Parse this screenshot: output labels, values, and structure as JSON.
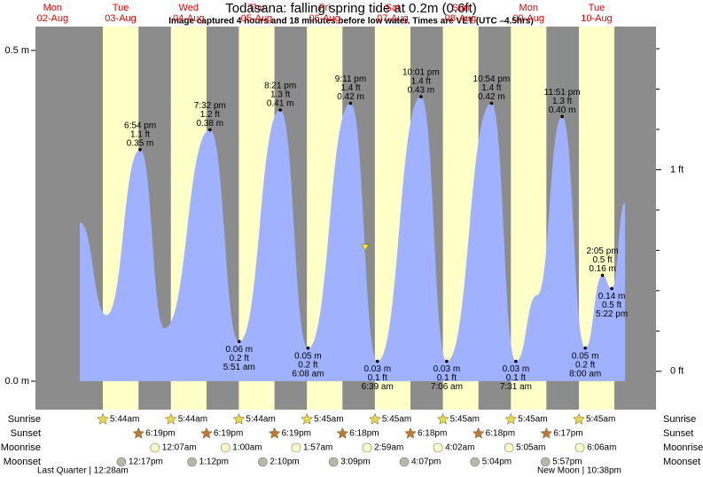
{
  "title": "Todasana: falling  spring tide at 0.2m (0.6ft)",
  "subtitle": "Image captured 4 hours and 18 minutes before low water. Times are VET (UTC –4.5hrs)",
  "chart_data": {
    "type": "area",
    "days": [
      {
        "weekday": "Mon",
        "date": "02-Aug"
      },
      {
        "weekday": "Tue",
        "date": "03-Aug"
      },
      {
        "weekday": "Wed",
        "date": "04-Aug"
      },
      {
        "weekday": "Thu",
        "date": "05-Aug"
      },
      {
        "weekday": "Fri",
        "date": "06-Aug"
      },
      {
        "weekday": "Sat",
        "date": "07-Aug"
      },
      {
        "weekday": "Sun",
        "date": "08-Aug"
      },
      {
        "weekday": "Mon",
        "date": "09-Aug"
      },
      {
        "weekday": "Tue",
        "date": "10-Aug"
      }
    ],
    "ylim": [
      -0.043,
      0.536
    ],
    "yticks": [
      {
        "value": 0,
        "label": "0.0 m"
      },
      {
        "value": 0.5,
        "label": "0.5 m"
      }
    ],
    "y2lim": [
      -0.19,
      1.71
    ],
    "y2ticks": [
      {
        "value": 0,
        "label": "0 ft"
      },
      {
        "value": 1,
        "label": "1 ft"
      }
    ],
    "y2minor": [
      0.2,
      0.4,
      0.6,
      0.8,
      1.2,
      1.4,
      1.6
    ],
    "tide": [
      {
        "date": "02-Aug",
        "time": "9:36 pm",
        "m": 0.24
      },
      {
        "date": "03-Aug",
        "time": "7:00 am",
        "m": 0.1
      },
      {
        "date": "03-Aug",
        "time": "6:54 pm",
        "m": 0.35,
        "m_label": "0.35 m",
        "ft_label": "1.1 ft"
      },
      {
        "date": "04-Aug",
        "time": "3:30 am",
        "m": 0.08
      },
      {
        "date": "04-Aug",
        "time": "7:32 pm",
        "m": 0.38,
        "m_label": "0.38 m",
        "ft_label": "1.2 ft"
      },
      {
        "date": "05-Aug",
        "time": "5:51 am",
        "m": 0.06,
        "m_label": "0.06 m",
        "ft_label": "0.2 ft"
      },
      {
        "date": "05-Aug",
        "time": "8:21 pm",
        "m": 0.41,
        "m_label": "0.41 m",
        "ft_label": "1.3 ft"
      },
      {
        "date": "06-Aug",
        "time": "6:08 am",
        "m": 0.05,
        "m_label": "0.05 m",
        "ft_label": "0.2 ft"
      },
      {
        "date": "06-Aug",
        "time": "9:11 pm",
        "m": 0.42,
        "m_label": "0.42 m",
        "ft_label": "1.4 ft"
      },
      {
        "date": "07-Aug",
        "time": "6:39 am",
        "m": 0.03,
        "m_label": "0.03 m",
        "ft_label": "0.1 ft"
      },
      {
        "date": "07-Aug",
        "time": "10:01 pm",
        "m": 0.43,
        "m_label": "0.43 m",
        "ft_label": "1.4 ft"
      },
      {
        "date": "08-Aug",
        "time": "7:06 am",
        "m": 0.03,
        "m_label": "0.03 m",
        "ft_label": "0.1 ft"
      },
      {
        "date": "08-Aug",
        "time": "10:54 pm",
        "m": 0.42,
        "m_label": "0.42 m",
        "ft_label": "1.4 ft"
      },
      {
        "date": "09-Aug",
        "time": "7:31 am",
        "m": 0.03,
        "m_label": "0.03 m",
        "ft_label": "0.1 ft"
      },
      {
        "date": "09-Aug",
        "time": "3:00 pm",
        "m": 0.13
      },
      {
        "date": "09-Aug",
        "time": "11:51 pm",
        "m": 0.4,
        "m_label": "0.40 m",
        "ft_label": "1.3 ft"
      },
      {
        "date": "10-Aug",
        "time": "8:00 am",
        "m": 0.05,
        "m_label": "0.05 m",
        "ft_label": "0.2 ft"
      },
      {
        "date": "10-Aug",
        "time": "2:05 pm",
        "m": 0.16,
        "m_label": "0.16 m",
        "ft_label": "0.5 ft"
      },
      {
        "date": "10-Aug",
        "time": "5:22 pm",
        "m": 0.14,
        "m_label": "0.14 m",
        "ft_label": "0.5 ft"
      },
      {
        "date": "10-Aug",
        "time": "10:00 pm",
        "m": 0.27
      }
    ],
    "now": {
      "date": "07-Aug",
      "time": "2:21 am",
      "m": 0.2
    },
    "colors": {
      "night": "#8c8c8c",
      "day": "#ffffc8",
      "water": "#a0b2ff",
      "marker": "#f5e642"
    }
  },
  "sun_moon": {
    "rows": [
      {
        "key": "sunrise",
        "label": "Sunrise",
        "color": "#e8d84a",
        "shape": "star"
      },
      {
        "key": "sunset",
        "label": "Sunset",
        "color": "#c07838",
        "shape": "star"
      },
      {
        "key": "moonrise",
        "label": "Moonrise",
        "color": "#ffffc8",
        "shape": "circle"
      },
      {
        "key": "moonset",
        "label": "Moonset",
        "color": "#b8b8a8",
        "shape": "circle"
      }
    ],
    "sunrise": [
      {
        "date": "03-Aug",
        "time": "5:44am"
      },
      {
        "date": "04-Aug",
        "time": "5:44am"
      },
      {
        "date": "05-Aug",
        "time": "5:44am"
      },
      {
        "date": "06-Aug",
        "time": "5:45am"
      },
      {
        "date": "07-Aug",
        "time": "5:45am"
      },
      {
        "date": "08-Aug",
        "time": "5:45am"
      },
      {
        "date": "09-Aug",
        "time": "5:45am"
      },
      {
        "date": "10-Aug",
        "time": "5:45am"
      }
    ],
    "sunset": [
      {
        "date": "03-Aug",
        "time": "6:19pm"
      },
      {
        "date": "04-Aug",
        "time": "6:19pm"
      },
      {
        "date": "05-Aug",
        "time": "6:19pm"
      },
      {
        "date": "06-Aug",
        "time": "6:18pm"
      },
      {
        "date": "07-Aug",
        "time": "6:18pm"
      },
      {
        "date": "08-Aug",
        "time": "6:18pm"
      },
      {
        "date": "09-Aug",
        "time": "6:17pm"
      }
    ],
    "moonrise": [
      {
        "date": "04-Aug",
        "time": "12:07am"
      },
      {
        "date": "05-Aug",
        "time": "1:00am"
      },
      {
        "date": "06-Aug",
        "time": "1:57am"
      },
      {
        "date": "07-Aug",
        "time": "2:59am"
      },
      {
        "date": "08-Aug",
        "time": "4:02am"
      },
      {
        "date": "09-Aug",
        "time": "5:05am"
      },
      {
        "date": "10-Aug",
        "time": "6:06am"
      }
    ],
    "moonset": [
      {
        "date": "03-Aug",
        "time": "12:17pm"
      },
      {
        "date": "04-Aug",
        "time": "1:12pm"
      },
      {
        "date": "05-Aug",
        "time": "2:10pm"
      },
      {
        "date": "06-Aug",
        "time": "3:09pm"
      },
      {
        "date": "07-Aug",
        "time": "4:07pm"
      },
      {
        "date": "08-Aug",
        "time": "5:04pm"
      },
      {
        "date": "09-Aug",
        "time": "5:57pm"
      }
    ]
  },
  "moon_phases": [
    {
      "label": "Last Quarter | 12:28am"
    },
    {
      "label": "New Moon | 10:38pm"
    }
  ]
}
